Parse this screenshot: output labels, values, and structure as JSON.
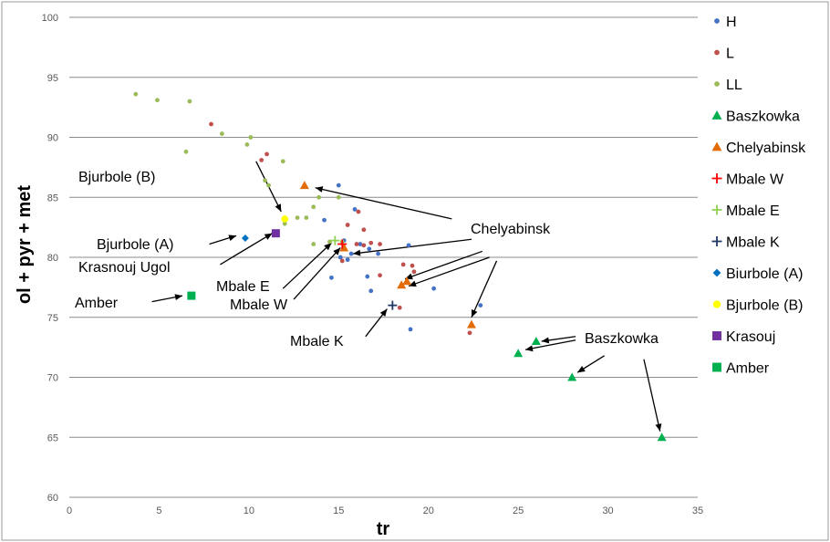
{
  "chart_data": {
    "type": "scatter",
    "xlabel": "tr",
    "ylabel": "ol + pyr + met",
    "xlim": [
      0,
      35
    ],
    "ylim": [
      60,
      100
    ],
    "x_ticks": [
      "0",
      "5",
      "10",
      "15",
      "20",
      "25",
      "30",
      "35"
    ],
    "y_ticks": [
      "60",
      "65",
      "70",
      "75",
      "80",
      "85",
      "90",
      "95",
      "100"
    ],
    "grid": "horizontal",
    "legend_position": "right",
    "series": [
      {
        "name": "H",
        "marker": "circle",
        "color": "#4472c4",
        "points": [
          [
            15,
            86
          ],
          [
            15.9,
            84
          ],
          [
            15.3,
            81.4
          ],
          [
            16.2,
            81.1
          ],
          [
            16.7,
            80.7
          ],
          [
            17.2,
            80.3
          ],
          [
            15.7,
            80.3
          ],
          [
            15.1,
            80
          ],
          [
            15.5,
            79.8
          ],
          [
            16.6,
            78.4
          ],
          [
            16.8,
            77.2
          ],
          [
            14.6,
            78.3
          ],
          [
            14.2,
            83.1
          ],
          [
            18.9,
            81
          ],
          [
            20.3,
            77.4
          ],
          [
            22.9,
            76
          ],
          [
            19.0,
            74
          ]
        ]
      },
      {
        "name": "L",
        "marker": "circle",
        "color": "#c0504d",
        "points": [
          [
            7.9,
            91.1
          ],
          [
            10.7,
            88.1
          ],
          [
            11.0,
            88.6
          ],
          [
            15.5,
            82.7
          ],
          [
            16.1,
            83.8
          ],
          [
            16.4,
            82.3
          ],
          [
            16.0,
            81.1
          ],
          [
            16.4,
            81.0
          ],
          [
            16.8,
            81.2
          ],
          [
            17.3,
            81.1
          ],
          [
            18.6,
            79.4
          ],
          [
            19.1,
            79.3
          ],
          [
            17.3,
            78.5
          ],
          [
            19.2,
            78.8
          ],
          [
            18.4,
            75.8
          ],
          [
            15.2,
            79.7
          ],
          [
            22.3,
            73.7
          ]
        ]
      },
      {
        "name": "LL",
        "marker": "circle",
        "color": "#9bbb59",
        "points": [
          [
            3.7,
            93.6
          ],
          [
            4.9,
            93.1
          ],
          [
            6.7,
            93.0
          ],
          [
            6.5,
            88.8
          ],
          [
            8.5,
            90.3
          ],
          [
            9.9,
            89.4
          ],
          [
            10.1,
            90.0
          ],
          [
            10.9,
            86.4
          ],
          [
            11.1,
            86.0
          ],
          [
            11.9,
            88.0
          ],
          [
            12.0,
            82.8
          ],
          [
            12.7,
            83.3
          ],
          [
            13.2,
            83.3
          ],
          [
            13.6,
            84.2
          ],
          [
            13.9,
            85.0
          ],
          [
            15.0,
            85.0
          ],
          [
            13.6,
            81.1
          ],
          [
            14.5,
            81.3
          ],
          [
            15.2,
            81.3
          ]
        ]
      },
      {
        "name": "Baszkowka",
        "marker": "triangle",
        "color": "#00b050",
        "points": [
          [
            25,
            72
          ],
          [
            26,
            73
          ],
          [
            28,
            70
          ],
          [
            33,
            65
          ]
        ]
      },
      {
        "name": "Chelyabinsk",
        "marker": "triangle",
        "color": "#e36c09",
        "points": [
          [
            13.1,
            86
          ],
          [
            15.3,
            80.8
          ],
          [
            18.5,
            77.7
          ],
          [
            18.8,
            78
          ],
          [
            22.4,
            74.4
          ]
        ]
      },
      {
        "name": "Mbale W",
        "marker": "plus",
        "color": "#ff0000",
        "points": [
          [
            15.2,
            81.1
          ]
        ]
      },
      {
        "name": "Mbale E",
        "marker": "plus",
        "color": "#92d050",
        "points": [
          [
            14.8,
            81.4
          ]
        ]
      },
      {
        "name": "Mbale K",
        "marker": "plus",
        "color": "#1f3864",
        "points": [
          [
            18.0,
            76
          ]
        ]
      },
      {
        "name": "Biurbole (A)",
        "marker": "diamond",
        "color": "#0070c0",
        "points": [
          [
            9.8,
            81.6
          ]
        ]
      },
      {
        "name": "Bjurbole (B)",
        "marker": "circle-lg",
        "color": "#ffff00",
        "points": [
          [
            12.0,
            83.2
          ]
        ]
      },
      {
        "name": "Krasouj",
        "marker": "square",
        "color": "#7030a0",
        "points": [
          [
            11.5,
            82
          ]
        ]
      },
      {
        "name": "Amber",
        "marker": "square",
        "color": "#00b050",
        "points": [
          [
            6.8,
            76.8
          ]
        ]
      }
    ],
    "annotations": [
      {
        "text": "Bjurbole (B)",
        "lines": [
          [
            [
              10.4,
              88
            ],
            [
              11.8,
              83.8
            ]
          ]
        ]
      },
      {
        "text": "Bjurbole (A)",
        "lines": [
          [
            [
              7.8,
              81.1
            ],
            [
              9.3,
              81.8
            ]
          ]
        ]
      },
      {
        "text": "Krasnouj Ugol",
        "lines": [
          [
            [
              8.4,
              79.4
            ],
            [
              11.3,
              82.0
            ]
          ]
        ]
      },
      {
        "text": "Amber",
        "lines": [
          [
            [
              4.6,
              76.3
            ],
            [
              6.3,
              76.8
            ]
          ]
        ]
      },
      {
        "text": "Mbale E",
        "lines": [
          [
            [
              11.9,
              77.4
            ],
            [
              14.6,
              81.2
            ]
          ]
        ]
      },
      {
        "text": "Mbale W",
        "lines": [
          [
            [
              12.5,
              76.5
            ],
            [
              15.1,
              80.8
            ]
          ]
        ]
      },
      {
        "text": "Mbale K",
        "lines": [
          [
            [
              16.5,
              73.4
            ],
            [
              17.7,
              75.7
            ]
          ]
        ]
      },
      {
        "text": "Chelyabinsk",
        "lines": [
          [
            [
              21.3,
              83.2
            ],
            [
              13.7,
              85.8
            ]
          ],
          [
            [
              22.4,
              81.5
            ],
            [
              15.8,
              80.3
            ]
          ],
          [
            [
              23.0,
              80.5
            ],
            [
              18.7,
              78.2
            ]
          ],
          [
            [
              23.4,
              80.0
            ],
            [
              18.9,
              77.6
            ]
          ],
          [
            [
              23.8,
              79.7
            ],
            [
              22.4,
              75.0
            ]
          ]
        ]
      },
      {
        "text": "Baszkowka",
        "lines": [
          [
            [
              28.2,
              73.4
            ],
            [
              26.3,
              73.0
            ]
          ],
          [
            [
              28.2,
              73.1
            ],
            [
              25.4,
              72.3
            ]
          ],
          [
            [
              29.8,
              71.8
            ],
            [
              28.3,
              70.4
            ]
          ],
          [
            [
              32.0,
              71.5
            ],
            [
              32.9,
              65.5
            ]
          ]
        ]
      }
    ]
  }
}
